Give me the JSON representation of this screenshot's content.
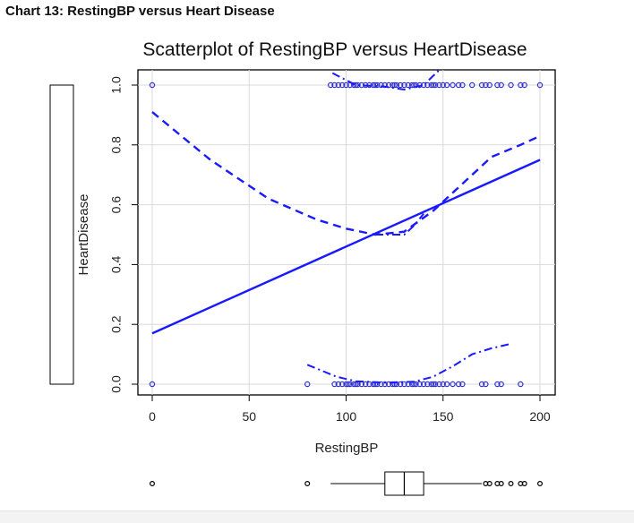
{
  "caption": "Chart 13: RestingBP versus Heart Disease",
  "chart_data": {
    "type": "scatter",
    "title": "Scatterplot of RestingBP versus HeartDisease",
    "xlabel": "RestingBP",
    "ylabel": "HeartDisease",
    "xlim": [
      0,
      200
    ],
    "ylim": [
      0,
      1
    ],
    "xticks": [
      0,
      50,
      100,
      150,
      200
    ],
    "yticks": [
      "0.0",
      "0.2",
      "0.4",
      "0.6",
      "0.8",
      "1.0"
    ],
    "grid": true,
    "point_color": "#3333cc",
    "line_color": "#1a1aff",
    "points_y0": [
      0,
      80,
      94,
      96,
      98,
      100,
      101,
      102,
      104,
      105,
      106,
      108,
      110,
      112,
      114,
      115,
      116,
      118,
      120,
      122,
      124,
      125,
      126,
      128,
      130,
      132,
      134,
      135,
      136,
      138,
      140,
      142,
      144,
      145,
      146,
      148,
      150,
      152,
      155,
      158,
      160,
      170,
      172,
      178,
      180,
      190
    ],
    "points_y1": [
      0,
      92,
      94,
      96,
      98,
      100,
      102,
      104,
      105,
      106,
      108,
      110,
      112,
      114,
      115,
      116,
      118,
      120,
      122,
      124,
      125,
      126,
      128,
      130,
      132,
      134,
      135,
      136,
      138,
      140,
      142,
      144,
      145,
      146,
      148,
      150,
      152,
      155,
      158,
      160,
      165,
      170,
      172,
      174,
      178,
      180,
      185,
      190,
      192,
      200
    ],
    "regression_line": [
      [
        0,
        0.17
      ],
      [
        200,
        0.75
      ]
    ],
    "smooth_fit": [
      [
        0,
        0.91
      ],
      [
        30,
        0.75
      ],
      [
        60,
        0.62
      ],
      [
        85,
        0.55
      ],
      [
        100,
        0.52
      ],
      [
        115,
        0.5
      ],
      [
        130,
        0.51
      ],
      [
        145,
        0.58
      ],
      [
        160,
        0.67
      ],
      [
        175,
        0.76
      ],
      [
        190,
        0.8
      ],
      [
        200,
        0.83
      ]
    ],
    "spread_upper": [
      [
        93,
        1.04
      ],
      [
        105,
        1.0
      ],
      [
        120,
        0.995
      ],
      [
        130,
        0.985
      ],
      [
        140,
        1.0
      ],
      [
        148,
        1.05
      ]
    ],
    "spread_lower": [
      [
        80,
        0.065
      ],
      [
        95,
        0.025
      ],
      [
        105,
        0.01
      ],
      [
        120,
        0.005
      ],
      [
        135,
        0.008
      ],
      [
        145,
        0.025
      ],
      [
        155,
        0.06
      ],
      [
        165,
        0.1
      ],
      [
        175,
        0.12
      ],
      [
        185,
        0.135
      ]
    ],
    "inner_smooth": [
      [
        115,
        0.5
      ],
      [
        125,
        0.5
      ],
      [
        130,
        0.5
      ],
      [
        135,
        0.53
      ],
      [
        140,
        0.57
      ]
    ],
    "boxplot_x": {
      "q1": 120,
      "median": 130,
      "q3": 140,
      "whisker_low": 92,
      "whisker_high": 170,
      "outliers": [
        0,
        80,
        172,
        174,
        178,
        180,
        185,
        190,
        192,
        200
      ]
    },
    "boxplot_y": {
      "q1": 0,
      "q3": 1
    }
  }
}
